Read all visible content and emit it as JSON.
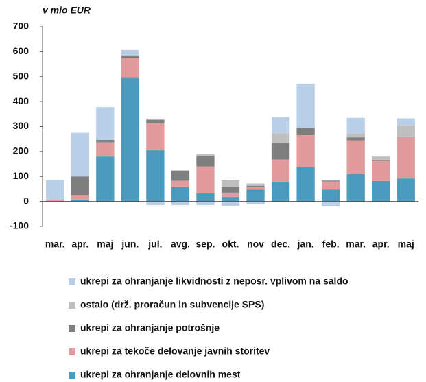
{
  "chart_data": {
    "type": "stacked_bar",
    "subtitle": "v mio EUR",
    "categories": [
      "mar.",
      "apr.",
      "maj",
      "jun.",
      "jul.",
      "avg.",
      "sep.",
      "okt.",
      "nov",
      "dec.",
      "jan.",
      "feb.",
      "mar.",
      "apr.",
      "maj"
    ],
    "series": [
      {
        "name": "ukrepi za ohranjanje delovnih mest",
        "color": "#4a9bbd",
        "values": [
          2,
          8,
          180,
          495,
          205,
          60,
          32,
          18,
          48,
          78,
          138,
          48,
          110,
          82,
          92
        ]
      },
      {
        "name": "ukrepi za tekoče delovanje javnih storitev",
        "color": "#e29b9c",
        "values": [
          5,
          18,
          57,
          80,
          108,
          23,
          108,
          17,
          10,
          90,
          127,
          32,
          135,
          80,
          166
        ]
      },
      {
        "name": "ukrepi za ohranjanje potrošnje",
        "color": "#7f7f7f",
        "values": [
          0,
          74,
          10,
          7,
          14,
          39,
          42,
          25,
          5,
          67,
          30,
          3,
          12,
          5,
          0
        ]
      },
      {
        "name": "ostalo (drž. proračun in subvencije SPS)",
        "color": "#bfbfbf",
        "values": [
          0,
          0,
          0,
          6,
          5,
          3,
          8,
          27,
          9,
          38,
          0,
          3,
          15,
          13,
          47
        ]
      },
      {
        "name": "ukrepi za ohranjanje likvidnosti z neposr. vplivom na saldo",
        "color": "#b8cfe7",
        "values": [
          79,
          175,
          131,
          19,
          -15,
          -15,
          -15,
          -18,
          -12,
          65,
          177,
          -20,
          63,
          3,
          28
        ]
      }
    ],
    "ylim": [
      -100,
      700
    ],
    "yticks": [
      -100,
      0,
      100,
      200,
      300,
      400,
      500,
      600,
      700
    ]
  }
}
